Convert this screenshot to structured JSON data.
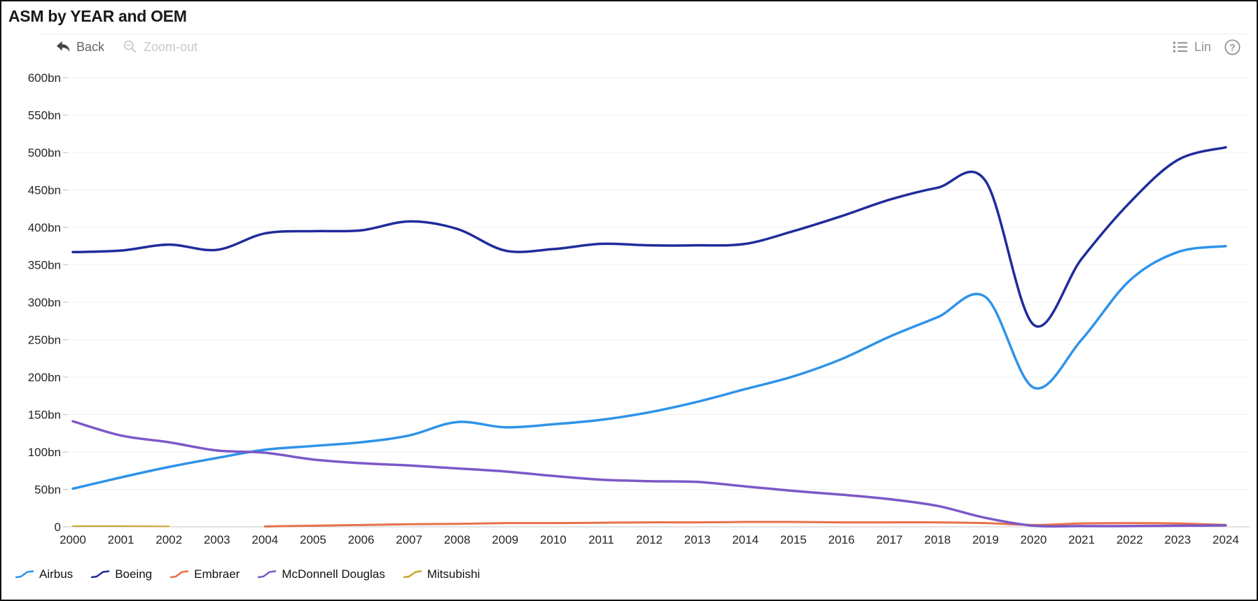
{
  "header": {
    "title": "ASM by YEAR and OEM"
  },
  "toolbar": {
    "back_label": "Back",
    "zoomout_label": "Zoom-out",
    "lin_label": "Lin",
    "help_glyph": "?"
  },
  "icons": {
    "back": "reply-arrow",
    "zoomout": "magnifier-minus",
    "lin": "bulleted-list",
    "help": "question-circle"
  },
  "colors": {
    "airbus": "#2E93E9",
    "boeing": "#1F2C9C",
    "embraer": "#E8714B",
    "mcdonnell_douglas": "#7C58C7",
    "mitsubishi": "#C9A42B",
    "grid": "#f1f1f1",
    "axis": "#c9c9c9",
    "axis_text": "#262626",
    "toolbar_enabled": "#666666",
    "toolbar_disabled": "#c9c9c9"
  },
  "chart_data": {
    "type": "line",
    "title": "ASM by YEAR and OEM",
    "xlabel": "YEAR",
    "ylabel": "ASM",
    "x": [
      2000,
      2001,
      2002,
      2003,
      2004,
      2005,
      2006,
      2007,
      2008,
      2009,
      2010,
      2011,
      2012,
      2013,
      2014,
      2015,
      2016,
      2017,
      2018,
      2019,
      2020,
      2021,
      2022,
      2023,
      2024
    ],
    "series": [
      {
        "name": "Airbus",
        "color": "#2E93E9",
        "stroke_width": 3.5,
        "values": [
          51,
          66,
          80,
          92,
          103,
          108,
          113,
          122,
          140,
          133,
          137,
          143,
          153,
          167,
          184,
          201,
          224,
          254,
          280,
          307,
          186,
          250,
          329,
          367,
          375
        ]
      },
      {
        "name": "Boeing",
        "color": "#1F2C9C",
        "stroke_width": 3.5,
        "values": [
          367,
          369,
          377,
          370,
          392,
          395,
          396,
          408,
          398,
          369,
          371,
          378,
          376,
          376,
          378,
          395,
          415,
          437,
          453,
          462,
          270,
          358,
          433,
          490,
          507
        ]
      },
      {
        "name": "Embraer",
        "color": "#E8714B",
        "stroke_width": 3,
        "values": [
          null,
          null,
          null,
          null,
          0.5,
          1.5,
          2.5,
          3.5,
          4,
          5,
          5,
          5.5,
          6,
          6,
          6.5,
          6.5,
          6,
          6,
          6,
          5,
          2.5,
          4.5,
          5,
          4.5,
          2.5
        ]
      },
      {
        "name": "McDonnell Douglas",
        "color": "#7C58C7",
        "stroke_width": 3.5,
        "values": [
          141,
          122,
          113,
          102,
          99,
          90,
          85,
          82,
          78,
          74,
          68,
          63,
          61,
          60,
          54,
          48,
          43,
          37,
          28,
          12,
          1.5,
          1,
          1,
          1.5,
          2
        ]
      },
      {
        "name": "Mitsubishi",
        "color": "#C9A42B",
        "stroke_width": 2,
        "values": [
          0.9,
          0.9,
          0.6,
          null,
          null,
          null,
          null,
          null,
          null,
          null,
          null,
          null,
          null,
          null,
          null,
          null,
          null,
          null,
          null,
          null,
          null,
          null,
          null,
          null,
          null
        ]
      }
    ],
    "ylim": [
      0,
      600
    ],
    "y_tick_step": 50,
    "y_tick_suffix": "bn",
    "y_ticks": [
      "0",
      "50bn",
      "100bn",
      "150bn",
      "200bn",
      "250bn",
      "300bn",
      "350bn",
      "400bn",
      "450bn",
      "500bn",
      "550bn",
      "600bn"
    ],
    "grid": "horizontal",
    "legend_position": "bottom"
  }
}
